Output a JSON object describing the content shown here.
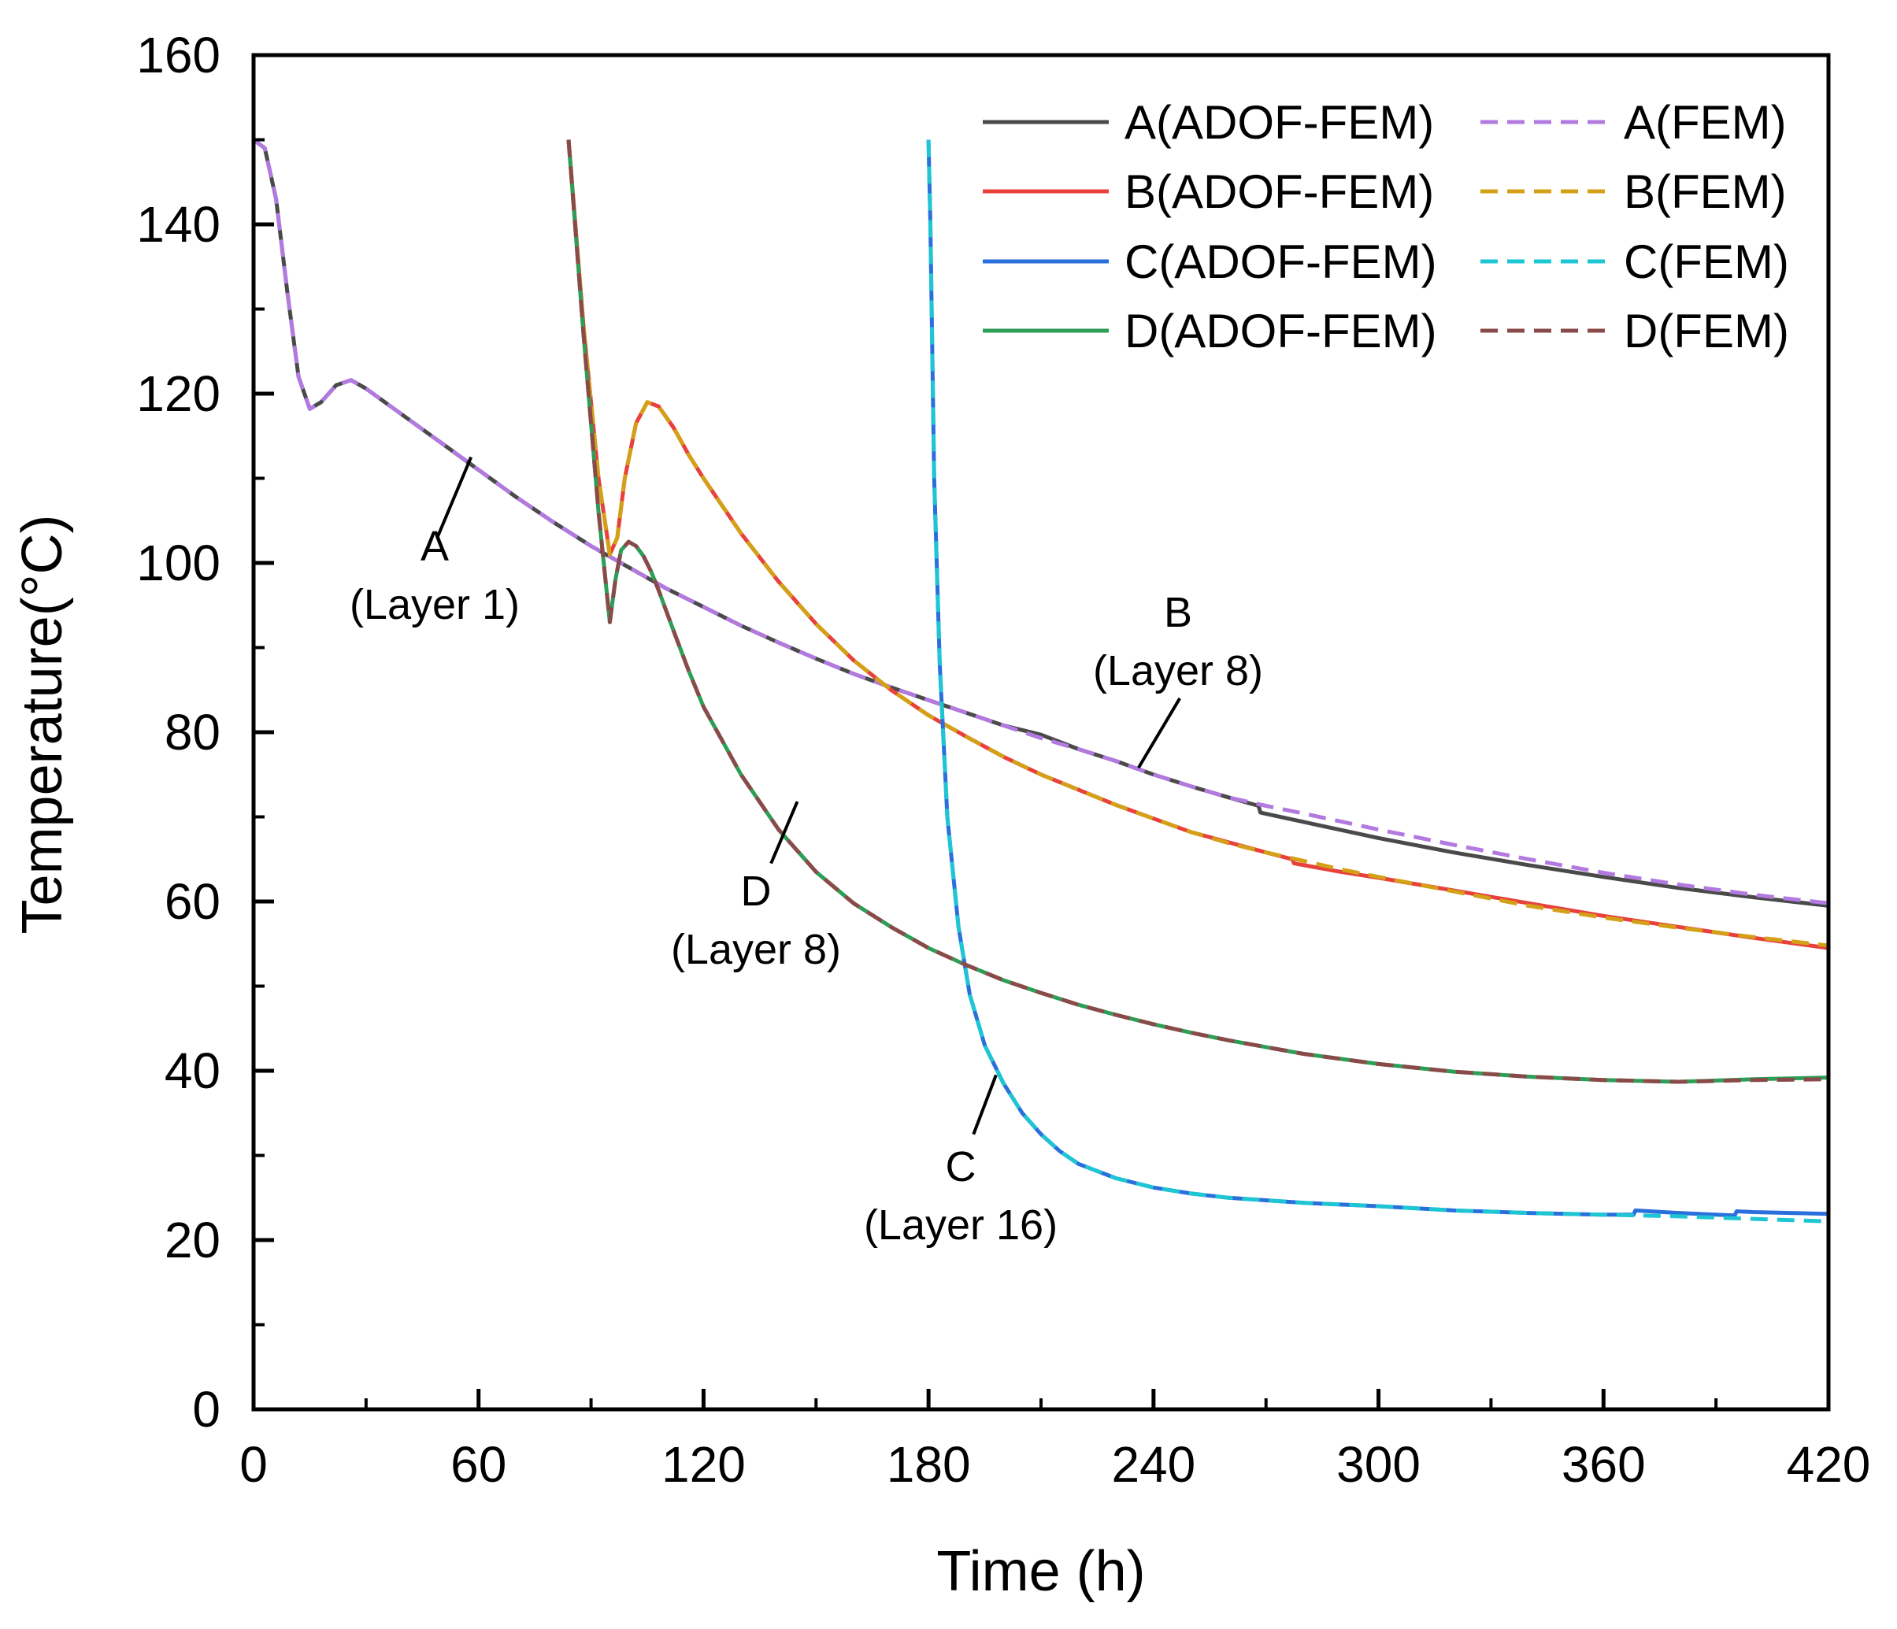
{
  "chart_data": {
    "type": "line",
    "title": "",
    "xlabel": "Time (h)",
    "ylabel": "Temperature(°C)",
    "xlim": [
      0,
      420
    ],
    "ylim": [
      0,
      160
    ],
    "xticks": [
      0,
      60,
      120,
      180,
      240,
      300,
      360,
      420
    ],
    "yticks": [
      0,
      20,
      40,
      60,
      80,
      100,
      120,
      140,
      160
    ],
    "xtick_labels": [
      "0",
      "60",
      "120",
      "180",
      "240",
      "300",
      "360",
      "420"
    ],
    "ytick_labels": [
      "0",
      "20",
      "40",
      "60",
      "80",
      "100",
      "120",
      "140",
      "160"
    ],
    "grid": false,
    "legend_position": "top-right",
    "series": [
      {
        "name": "A(ADOF-FEM)",
        "color": "#4a4a4a",
        "style": "solid",
        "x": [
          0,
          3,
          6,
          9,
          12,
          15,
          18,
          22,
          26,
          30,
          40,
          50,
          60,
          70,
          80,
          90,
          100,
          110,
          120,
          130,
          140,
          150,
          160,
          170,
          180,
          190,
          200,
          210,
          220,
          230,
          240,
          250,
          260,
          268,
          268.5,
          280,
          300,
          320,
          340,
          360,
          380,
          400,
          420
        ],
        "y": [
          150,
          149,
          143,
          132,
          122,
          118.2,
          119,
          121,
          121.6,
          120.6,
          117.4,
          114.2,
          111,
          107.8,
          104.8,
          102,
          99.5,
          97,
          94.8,
          92.6,
          90.6,
          88.7,
          86.9,
          85.3,
          83.8,
          82.3,
          80.8,
          79.7,
          78,
          76.6,
          75,
          73.6,
          72.3,
          71.3,
          70.5,
          69.4,
          67.5,
          65.8,
          64.3,
          62.9,
          61.6,
          60.5,
          59.5
        ]
      },
      {
        "name": "A(FEM)",
        "color": "#b27ae0",
        "style": "dashed",
        "x": [
          0,
          3,
          6,
          9,
          12,
          15,
          18,
          22,
          26,
          30,
          40,
          50,
          60,
          70,
          80,
          90,
          100,
          110,
          120,
          130,
          140,
          150,
          160,
          170,
          180,
          190,
          200,
          210,
          220,
          230,
          240,
          250,
          260,
          270,
          280,
          300,
          320,
          340,
          360,
          380,
          400,
          420
        ],
        "y": [
          150,
          149,
          143,
          132,
          122,
          118.2,
          119,
          121,
          121.6,
          120.6,
          117.4,
          114.2,
          111,
          107.8,
          104.8,
          102,
          99.5,
          97,
          94.8,
          92.6,
          90.6,
          88.7,
          86.9,
          85.3,
          83.8,
          82.3,
          80.8,
          79.3,
          78,
          76.6,
          75,
          73.6,
          72.3,
          71.3,
          70.4,
          68.5,
          66.7,
          65,
          63.4,
          62,
          60.8,
          59.8
        ]
      },
      {
        "name": "B(ADOF-FEM)",
        "color": "#e8413c",
        "style": "solid",
        "x": [
          84,
          88,
          92,
          95,
          97,
          99,
          102,
          105,
          108,
          112,
          116,
          120,
          130,
          140,
          150,
          160,
          170,
          180,
          190,
          200,
          210,
          220,
          230,
          240,
          250,
          260,
          270,
          277,
          277.5,
          290,
          300,
          320,
          340,
          360,
          380,
          400,
          420
        ],
        "y": [
          150,
          128,
          110,
          101,
          103,
          110,
          116.5,
          119,
          118.5,
          116,
          112.8,
          110,
          103.5,
          97.8,
          92.8,
          88.5,
          85,
          82,
          79.5,
          77.1,
          75,
          73.2,
          71.4,
          69.8,
          68.2,
          67,
          65.8,
          65,
          64.5,
          63.5,
          62.8,
          61.3,
          59.8,
          58.3,
          57,
          55.7,
          54.5
        ]
      },
      {
        "name": "B(FEM)",
        "color": "#d4a017",
        "style": "dashed",
        "x": [
          84,
          88,
          92,
          95,
          97,
          99,
          102,
          105,
          108,
          112,
          116,
          120,
          130,
          140,
          150,
          160,
          170,
          180,
          190,
          200,
          210,
          220,
          230,
          240,
          250,
          260,
          270,
          280,
          290,
          300,
          320,
          340,
          360,
          380,
          400,
          420
        ],
        "y": [
          150,
          128,
          110,
          101,
          103,
          110,
          116.5,
          119,
          118.5,
          116,
          112.8,
          110,
          103.5,
          97.8,
          92.8,
          88.5,
          85,
          82,
          79.5,
          77.1,
          75,
          73.2,
          71.4,
          69.8,
          68.2,
          66.9,
          65.8,
          64.8,
          63.8,
          62.9,
          61.2,
          59.5,
          58.1,
          56.9,
          55.8,
          54.8
        ]
      },
      {
        "name": "C(ADOF-FEM)",
        "color": "#2a6fdb",
        "style": "solid",
        "x": [
          180,
          180.5,
          181.5,
          183,
          185,
          188,
          191,
          195,
          200,
          205,
          210,
          215,
          220,
          230,
          240,
          250,
          260,
          270,
          280,
          300,
          320,
          340,
          360,
          368,
          368.5,
          380,
          390,
          395,
          395.5,
          400,
          410,
          420
        ],
        "y": [
          150,
          140,
          110,
          88,
          70,
          57,
          49,
          43,
          38.5,
          35,
          32.5,
          30.5,
          29,
          27.3,
          26.2,
          25.5,
          25,
          24.7,
          24.4,
          24,
          23.5,
          23.2,
          23,
          23,
          23.5,
          23.2,
          23,
          22.9,
          23.4,
          23.3,
          23.2,
          23.1
        ]
      },
      {
        "name": "C(FEM)",
        "color": "#1ec6d4",
        "style": "dashed",
        "x": [
          180,
          180.5,
          181.5,
          183,
          185,
          188,
          191,
          195,
          200,
          205,
          210,
          215,
          220,
          230,
          240,
          250,
          260,
          270,
          280,
          300,
          320,
          340,
          360,
          380,
          400,
          420
        ],
        "y": [
          150,
          140,
          110,
          88,
          70,
          57,
          49,
          43,
          38.5,
          35,
          32.5,
          30.5,
          29,
          27.3,
          26.2,
          25.5,
          25,
          24.7,
          24.4,
          24,
          23.5,
          23.2,
          23,
          22.8,
          22.5,
          22.2
        ]
      },
      {
        "name": "D(ADOF-FEM)",
        "color": "#2e9e57",
        "style": "solid",
        "x": [
          84,
          88,
          92,
          95,
          96.5,
          98,
          100,
          102,
          104,
          106,
          108,
          112,
          116,
          120,
          130,
          140,
          150,
          160,
          170,
          180,
          190,
          200,
          210,
          220,
          230,
          240,
          250,
          260,
          270,
          280,
          300,
          320,
          340,
          360,
          380,
          400,
          420
        ],
        "y": [
          150,
          127,
          106,
          93,
          98,
          101.5,
          102.5,
          102,
          100.8,
          99,
          96.8,
          92,
          87.3,
          83,
          75,
          68.5,
          63.5,
          59.8,
          57,
          54.5,
          52.5,
          50.7,
          49.2,
          47.8,
          46.6,
          45.5,
          44.5,
          43.6,
          42.8,
          42,
          40.8,
          39.9,
          39.3,
          38.9,
          38.7,
          39,
          39.2
        ]
      },
      {
        "name": "D(FEM)",
        "color": "#8b4a4a",
        "style": "dashed",
        "x": [
          84,
          88,
          92,
          95,
          96.5,
          98,
          100,
          102,
          104,
          106,
          108,
          112,
          116,
          120,
          130,
          140,
          150,
          160,
          170,
          180,
          190,
          200,
          210,
          220,
          230,
          240,
          250,
          260,
          270,
          280,
          300,
          320,
          340,
          360,
          380,
          400,
          420
        ],
        "y": [
          150,
          127,
          106,
          93,
          98,
          101.5,
          102.5,
          102,
          100.8,
          99,
          96.8,
          92,
          87.3,
          83,
          75,
          68.5,
          63.5,
          59.8,
          57,
          54.5,
          52.5,
          50.7,
          49.2,
          47.8,
          46.6,
          45.5,
          44.5,
          43.6,
          42.8,
          42,
          40.8,
          39.9,
          39.3,
          38.9,
          38.7,
          38.9,
          39
        ]
      }
    ],
    "annotations": [
      {
        "name": "annotation-a",
        "label": "A",
        "sublabel": "(Layer 1)",
        "target": [
          58,
          112.5
        ],
        "anchor": [
          49,
          103
        ]
      },
      {
        "name": "annotation-b",
        "label": "B",
        "sublabel": "(Layer 8)",
        "target": [
          236,
          75.8
        ],
        "anchor": [
          247,
          84
        ]
      },
      {
        "name": "annotation-c",
        "label": "C",
        "sublabel": "(Layer 16)",
        "target": [
          198,
          39.5
        ],
        "anchor": [
          192,
          32.5
        ]
      },
      {
        "name": "annotation-d",
        "label": "D",
        "sublabel": "(Layer 8)",
        "target": [
          145,
          71.8
        ],
        "anchor": [
          138,
          64.5
        ]
      }
    ]
  }
}
